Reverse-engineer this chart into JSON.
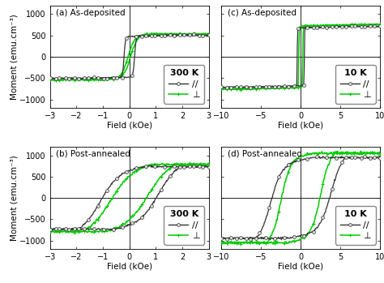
{
  "panels": [
    {
      "label": "(a) As-deposited",
      "temp_label": "300 K",
      "xlim": [
        -3,
        3
      ],
      "xticks": [
        -3,
        -2,
        -1,
        0,
        1,
        2,
        3
      ],
      "ylim": [
        -1200,
        1200
      ],
      "yticks": [
        -1000,
        -500,
        0,
        500,
        1000
      ],
      "par_Ms": 480,
      "par_Hc": 0.2,
      "par_k": 18,
      "par_slope": 15,
      "perp_Ms": 510,
      "perp_Hc": 0.05,
      "perp_k": 4,
      "perp_slope": 30,
      "noise": 8
    },
    {
      "label": "(b) Post-annealed",
      "temp_label": "300 K",
      "xlim": [
        -3,
        3
      ],
      "xticks": [
        -3,
        -2,
        -1,
        0,
        1,
        2,
        3
      ],
      "ylim": [
        -1200,
        1200
      ],
      "yticks": [
        -1000,
        -500,
        0,
        500,
        1000
      ],
      "par_Ms": 700,
      "par_Hc": 1.1,
      "par_k": 1.4,
      "par_slope": 80,
      "perp_Ms": 750,
      "perp_Hc": 0.7,
      "perp_k": 1.2,
      "perp_slope": 80,
      "noise": 10
    },
    {
      "label": "(c) As-deposited",
      "temp_label": "10 K",
      "xlim": [
        -10,
        10
      ],
      "xticks": [
        -10,
        -5,
        0,
        5,
        10
      ],
      "ylim": [
        -1200,
        1200
      ],
      "yticks": [
        -1000,
        -500,
        0,
        500,
        1000
      ],
      "par_Ms": 680,
      "par_Hc": 0.45,
      "par_k": 25,
      "par_slope": 5,
      "perp_Ms": 720,
      "perp_Hc": 0.25,
      "perp_k": 20,
      "perp_slope": 5,
      "noise": 6
    },
    {
      "label": "(d) Post-annealed",
      "temp_label": "10 K",
      "xlim": [
        -10,
        10
      ],
      "xticks": [
        -10,
        -5,
        0,
        5,
        10
      ],
      "ylim": [
        -1200,
        1200
      ],
      "yticks": [
        -1000,
        -500,
        0,
        500,
        1000
      ],
      "par_Ms": 900,
      "par_Hc": 3.8,
      "par_k": 0.7,
      "par_slope": 30,
      "perp_Ms": 1000,
      "perp_Hc": 2.5,
      "perp_k": 0.85,
      "perp_slope": 30,
      "noise": 12
    }
  ],
  "parallel_color": "#333333",
  "perp_color": "#00cc00",
  "parallel_label": "//",
  "perp_label": "⊥",
  "ylabel": "Moment (emu.cm⁻³)",
  "xlabel": "Field (kOe)",
  "background_color": "#ffffff",
  "legend_fontsize": 7.5,
  "tick_fontsize": 7,
  "label_fontsize": 7.5
}
